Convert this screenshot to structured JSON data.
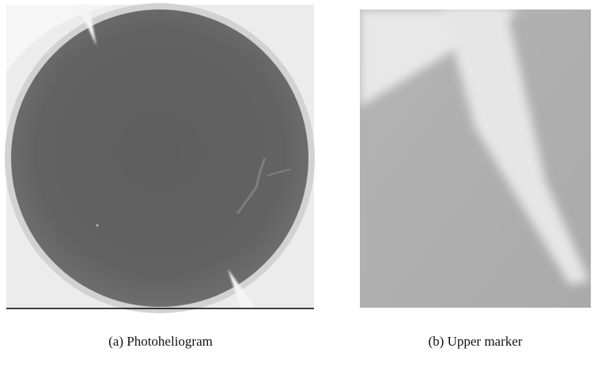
{
  "figures": [
    {
      "caption": "(a) Photoheliogram"
    },
    {
      "caption": "(b) Upper marker"
    }
  ]
}
